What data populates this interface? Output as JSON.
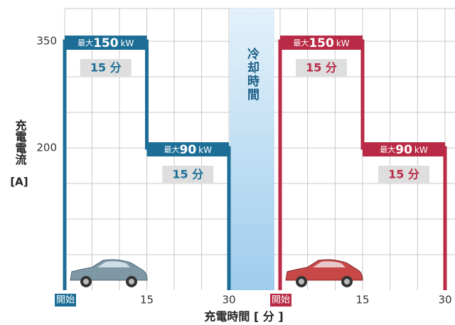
{
  "chart_data": {
    "type": "step",
    "ylabel": "充電電流",
    "ylabel_unit": "[A]",
    "xlabel": "充電時間 [ 分 ]",
    "ylim": [
      0,
      396
    ],
    "yticks": [
      200,
      350
    ],
    "ygrid": [
      50,
      100,
      150,
      200,
      250,
      300,
      350
    ],
    "cooling_label": "冷却時間",
    "panels": [
      {
        "color": "#1d6e96",
        "xlim": [
          0,
          30
        ],
        "xticks": [
          {
            "value": 0,
            "label": "開始"
          },
          15,
          30
        ],
        "xgrid": [
          0,
          5,
          10,
          15,
          20,
          25,
          30
        ],
        "x": [
          0,
          0,
          15,
          15,
          30,
          30
        ],
        "values": [
          0,
          350,
          350,
          200,
          200,
          0
        ],
        "annotations": [
          {
            "prefix": "最大",
            "power": 150,
            "unit": "kW",
            "duration": "15 分"
          },
          {
            "prefix": "最大",
            "power": 90,
            "unit": "kW",
            "duration": "15 分"
          }
        ]
      },
      {
        "color": "#b82a45",
        "xlim": [
          0,
          30
        ],
        "xticks": [
          {
            "value": 0,
            "label": "開始"
          },
          15,
          30
        ],
        "xgrid": [
          0,
          5,
          10,
          15,
          20,
          25,
          30
        ],
        "x": [
          0,
          0,
          15,
          15,
          30,
          30
        ],
        "values": [
          0,
          350,
          350,
          200,
          200,
          0
        ],
        "annotations": [
          {
            "prefix": "最大",
            "power": 150,
            "unit": "kW",
            "duration": "15 分"
          },
          {
            "prefix": "最大",
            "power": 90,
            "unit": "kW",
            "duration": "15 分"
          }
        ]
      }
    ]
  }
}
